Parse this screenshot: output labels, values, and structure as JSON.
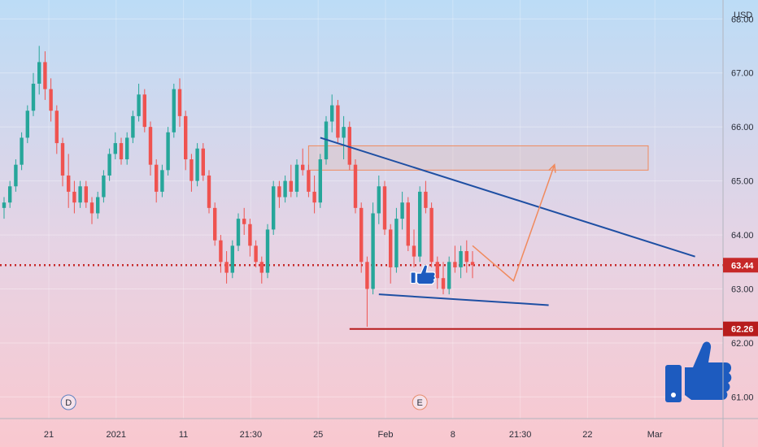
{
  "chart_data": {
    "type": "candlestick",
    "currency": "USD",
    "x_ticks": [
      "21",
      "2021",
      "11",
      "21:30",
      "25",
      "Feb",
      "8",
      "21:30",
      "22",
      "Mar"
    ],
    "y_ticks": [
      "68.00",
      "67.00",
      "66.00",
      "65.00",
      "64.00",
      "63.00",
      "62.00",
      "61.00"
    ],
    "ylim": [
      60.6,
      68.35
    ],
    "current_price": {
      "label": "63.44",
      "value": 63.44,
      "color": "#c62828"
    },
    "support_level": {
      "label": "62.26",
      "value": 62.26,
      "color": "#b71c1c"
    },
    "event_markers": [
      {
        "label": "D",
        "x": 11
      },
      {
        "label": "E",
        "x": 71
      }
    ],
    "colors": {
      "up": "#26a69a",
      "down": "#ef5350",
      "trendline": "#1e4fa3",
      "zone": "#f08a5d",
      "thumb": "#1d5bbf"
    },
    "candles": [
      [
        0,
        64.5,
        64.7,
        64.3,
        64.6
      ],
      [
        1,
        64.6,
        65.0,
        64.5,
        64.9
      ],
      [
        2,
        64.9,
        65.4,
        64.8,
        65.3
      ],
      [
        3,
        65.3,
        65.9,
        65.2,
        65.8
      ],
      [
        4,
        65.8,
        66.4,
        65.7,
        66.3
      ],
      [
        5,
        66.3,
        67.0,
        66.2,
        66.8
      ],
      [
        6,
        66.8,
        67.5,
        66.6,
        67.2
      ],
      [
        7,
        67.2,
        67.4,
        66.5,
        66.7
      ],
      [
        8,
        66.7,
        66.9,
        66.1,
        66.3
      ],
      [
        9,
        66.3,
        66.4,
        65.5,
        65.7
      ],
      [
        10,
        65.7,
        65.8,
        64.9,
        65.1
      ],
      [
        11,
        65.1,
        65.5,
        64.5,
        64.8
      ],
      [
        12,
        64.8,
        65.0,
        64.4,
        64.6
      ],
      [
        13,
        64.6,
        65.0,
        64.5,
        64.9
      ],
      [
        14,
        64.9,
        65.0,
        64.5,
        64.6
      ],
      [
        15,
        64.6,
        64.7,
        64.2,
        64.4
      ],
      [
        16,
        64.4,
        64.8,
        64.3,
        64.7
      ],
      [
        17,
        64.7,
        65.2,
        64.6,
        65.1
      ],
      [
        18,
        65.1,
        65.6,
        65.0,
        65.5
      ],
      [
        19,
        65.5,
        65.9,
        65.4,
        65.7
      ],
      [
        20,
        65.7,
        65.8,
        65.3,
        65.4
      ],
      [
        21,
        65.4,
        65.9,
        65.3,
        65.8
      ],
      [
        22,
        65.8,
        66.3,
        65.7,
        66.2
      ],
      [
        23,
        66.2,
        66.8,
        66.1,
        66.6
      ],
      [
        24,
        66.6,
        66.7,
        65.9,
        66.0
      ],
      [
        25,
        66.0,
        66.1,
        65.1,
        65.3
      ],
      [
        26,
        65.3,
        65.4,
        64.6,
        64.8
      ],
      [
        27,
        64.8,
        65.3,
        64.7,
        65.2
      ],
      [
        28,
        65.2,
        66.0,
        65.1,
        65.9
      ],
      [
        29,
        65.9,
        66.8,
        65.8,
        66.7
      ],
      [
        30,
        66.7,
        66.9,
        66.0,
        66.2
      ],
      [
        31,
        66.2,
        66.3,
        65.2,
        65.4
      ],
      [
        32,
        65.4,
        65.5,
        64.8,
        65.0
      ],
      [
        33,
        65.0,
        65.7,
        64.9,
        65.6
      ],
      [
        34,
        65.6,
        65.7,
        65.0,
        65.1
      ],
      [
        35,
        65.1,
        65.2,
        64.4,
        64.5
      ],
      [
        36,
        64.5,
        64.6,
        63.8,
        63.9
      ],
      [
        37,
        63.9,
        64.0,
        63.3,
        63.5
      ],
      [
        38,
        63.5,
        63.7,
        63.1,
        63.3
      ],
      [
        39,
        63.3,
        63.9,
        63.2,
        63.8
      ],
      [
        40,
        63.8,
        64.4,
        63.7,
        64.3
      ],
      [
        41,
        64.3,
        64.5,
        64.0,
        64.2
      ],
      [
        42,
        64.2,
        64.3,
        63.6,
        63.8
      ],
      [
        43,
        63.8,
        63.9,
        63.4,
        63.5
      ],
      [
        44,
        63.5,
        63.6,
        63.1,
        63.3
      ],
      [
        45,
        63.3,
        64.2,
        63.2,
        64.1
      ],
      [
        46,
        64.1,
        65.0,
        64.0,
        64.9
      ],
      [
        47,
        64.9,
        65.0,
        64.5,
        64.7
      ],
      [
        48,
        64.7,
        65.1,
        64.6,
        65.0
      ],
      [
        49,
        65.0,
        65.3,
        64.7,
        64.8
      ],
      [
        50,
        64.8,
        65.4,
        64.7,
        65.3
      ],
      [
        51,
        65.3,
        65.6,
        65.1,
        65.2
      ],
      [
        52,
        65.2,
        65.3,
        64.7,
        64.8
      ],
      [
        53,
        64.8,
        65.1,
        64.4,
        64.6
      ],
      [
        54,
        64.6,
        65.5,
        64.5,
        65.4
      ],
      [
        55,
        65.4,
        66.2,
        65.3,
        66.1
      ],
      [
        56,
        66.1,
        66.6,
        65.9,
        66.4
      ],
      [
        57,
        66.4,
        66.5,
        65.7,
        65.8
      ],
      [
        58,
        65.8,
        66.2,
        65.4,
        66.0
      ],
      [
        59,
        66.0,
        66.1,
        65.2,
        65.3
      ],
      [
        60,
        65.3,
        65.4,
        64.4,
        64.5
      ],
      [
        61,
        64.5,
        64.6,
        63.3,
        63.5
      ],
      [
        62,
        63.5,
        63.6,
        62.3,
        63.0
      ],
      [
        63,
        63.0,
        64.6,
        62.9,
        64.4
      ],
      [
        64,
        64.4,
        65.1,
        64.2,
        64.9
      ],
      [
        65,
        64.9,
        65.0,
        64.0,
        64.1
      ],
      [
        66,
        64.1,
        64.2,
        63.1,
        63.4
      ],
      [
        67,
        63.4,
        64.5,
        63.3,
        64.3
      ],
      [
        68,
        64.3,
        64.8,
        64.1,
        64.6
      ],
      [
        69,
        64.6,
        64.7,
        63.7,
        63.8
      ],
      [
        70,
        63.8,
        64.1,
        63.4,
        63.6
      ],
      [
        71,
        63.6,
        64.9,
        63.5,
        64.8
      ],
      [
        72,
        64.8,
        65.0,
        64.4,
        64.5
      ],
      [
        73,
        64.5,
        64.6,
        63.4,
        63.5
      ],
      [
        74,
        63.5,
        63.6,
        63.0,
        63.2
      ],
      [
        75,
        63.2,
        63.5,
        62.9,
        63.0
      ],
      [
        76,
        63.0,
        63.6,
        62.9,
        63.5
      ],
      [
        77,
        63.5,
        63.8,
        63.3,
        63.4
      ],
      [
        78,
        63.4,
        63.8,
        63.2,
        63.7
      ],
      [
        79,
        63.7,
        63.9,
        63.3,
        63.5
      ],
      [
        80,
        63.5,
        63.7,
        63.2,
        63.44
      ]
    ],
    "drawings": {
      "zone": {
        "x_from": 52,
        "x_to": 110,
        "y_from": 65.2,
        "y_to": 65.65
      },
      "resistance_trendline": {
        "x1": 54,
        "y1": 65.8,
        "x2": 118,
        "y2": 63.6
      },
      "support_trendline": {
        "x1": 64,
        "y1": 62.9,
        "x2": 93,
        "y2": 62.7
      },
      "projection_path": [
        [
          80,
          63.8
        ],
        [
          87,
          63.15
        ],
        [
          94,
          65.3
        ]
      ],
      "support_line": {
        "x_from": 59,
        "x_to": 128
      }
    }
  }
}
